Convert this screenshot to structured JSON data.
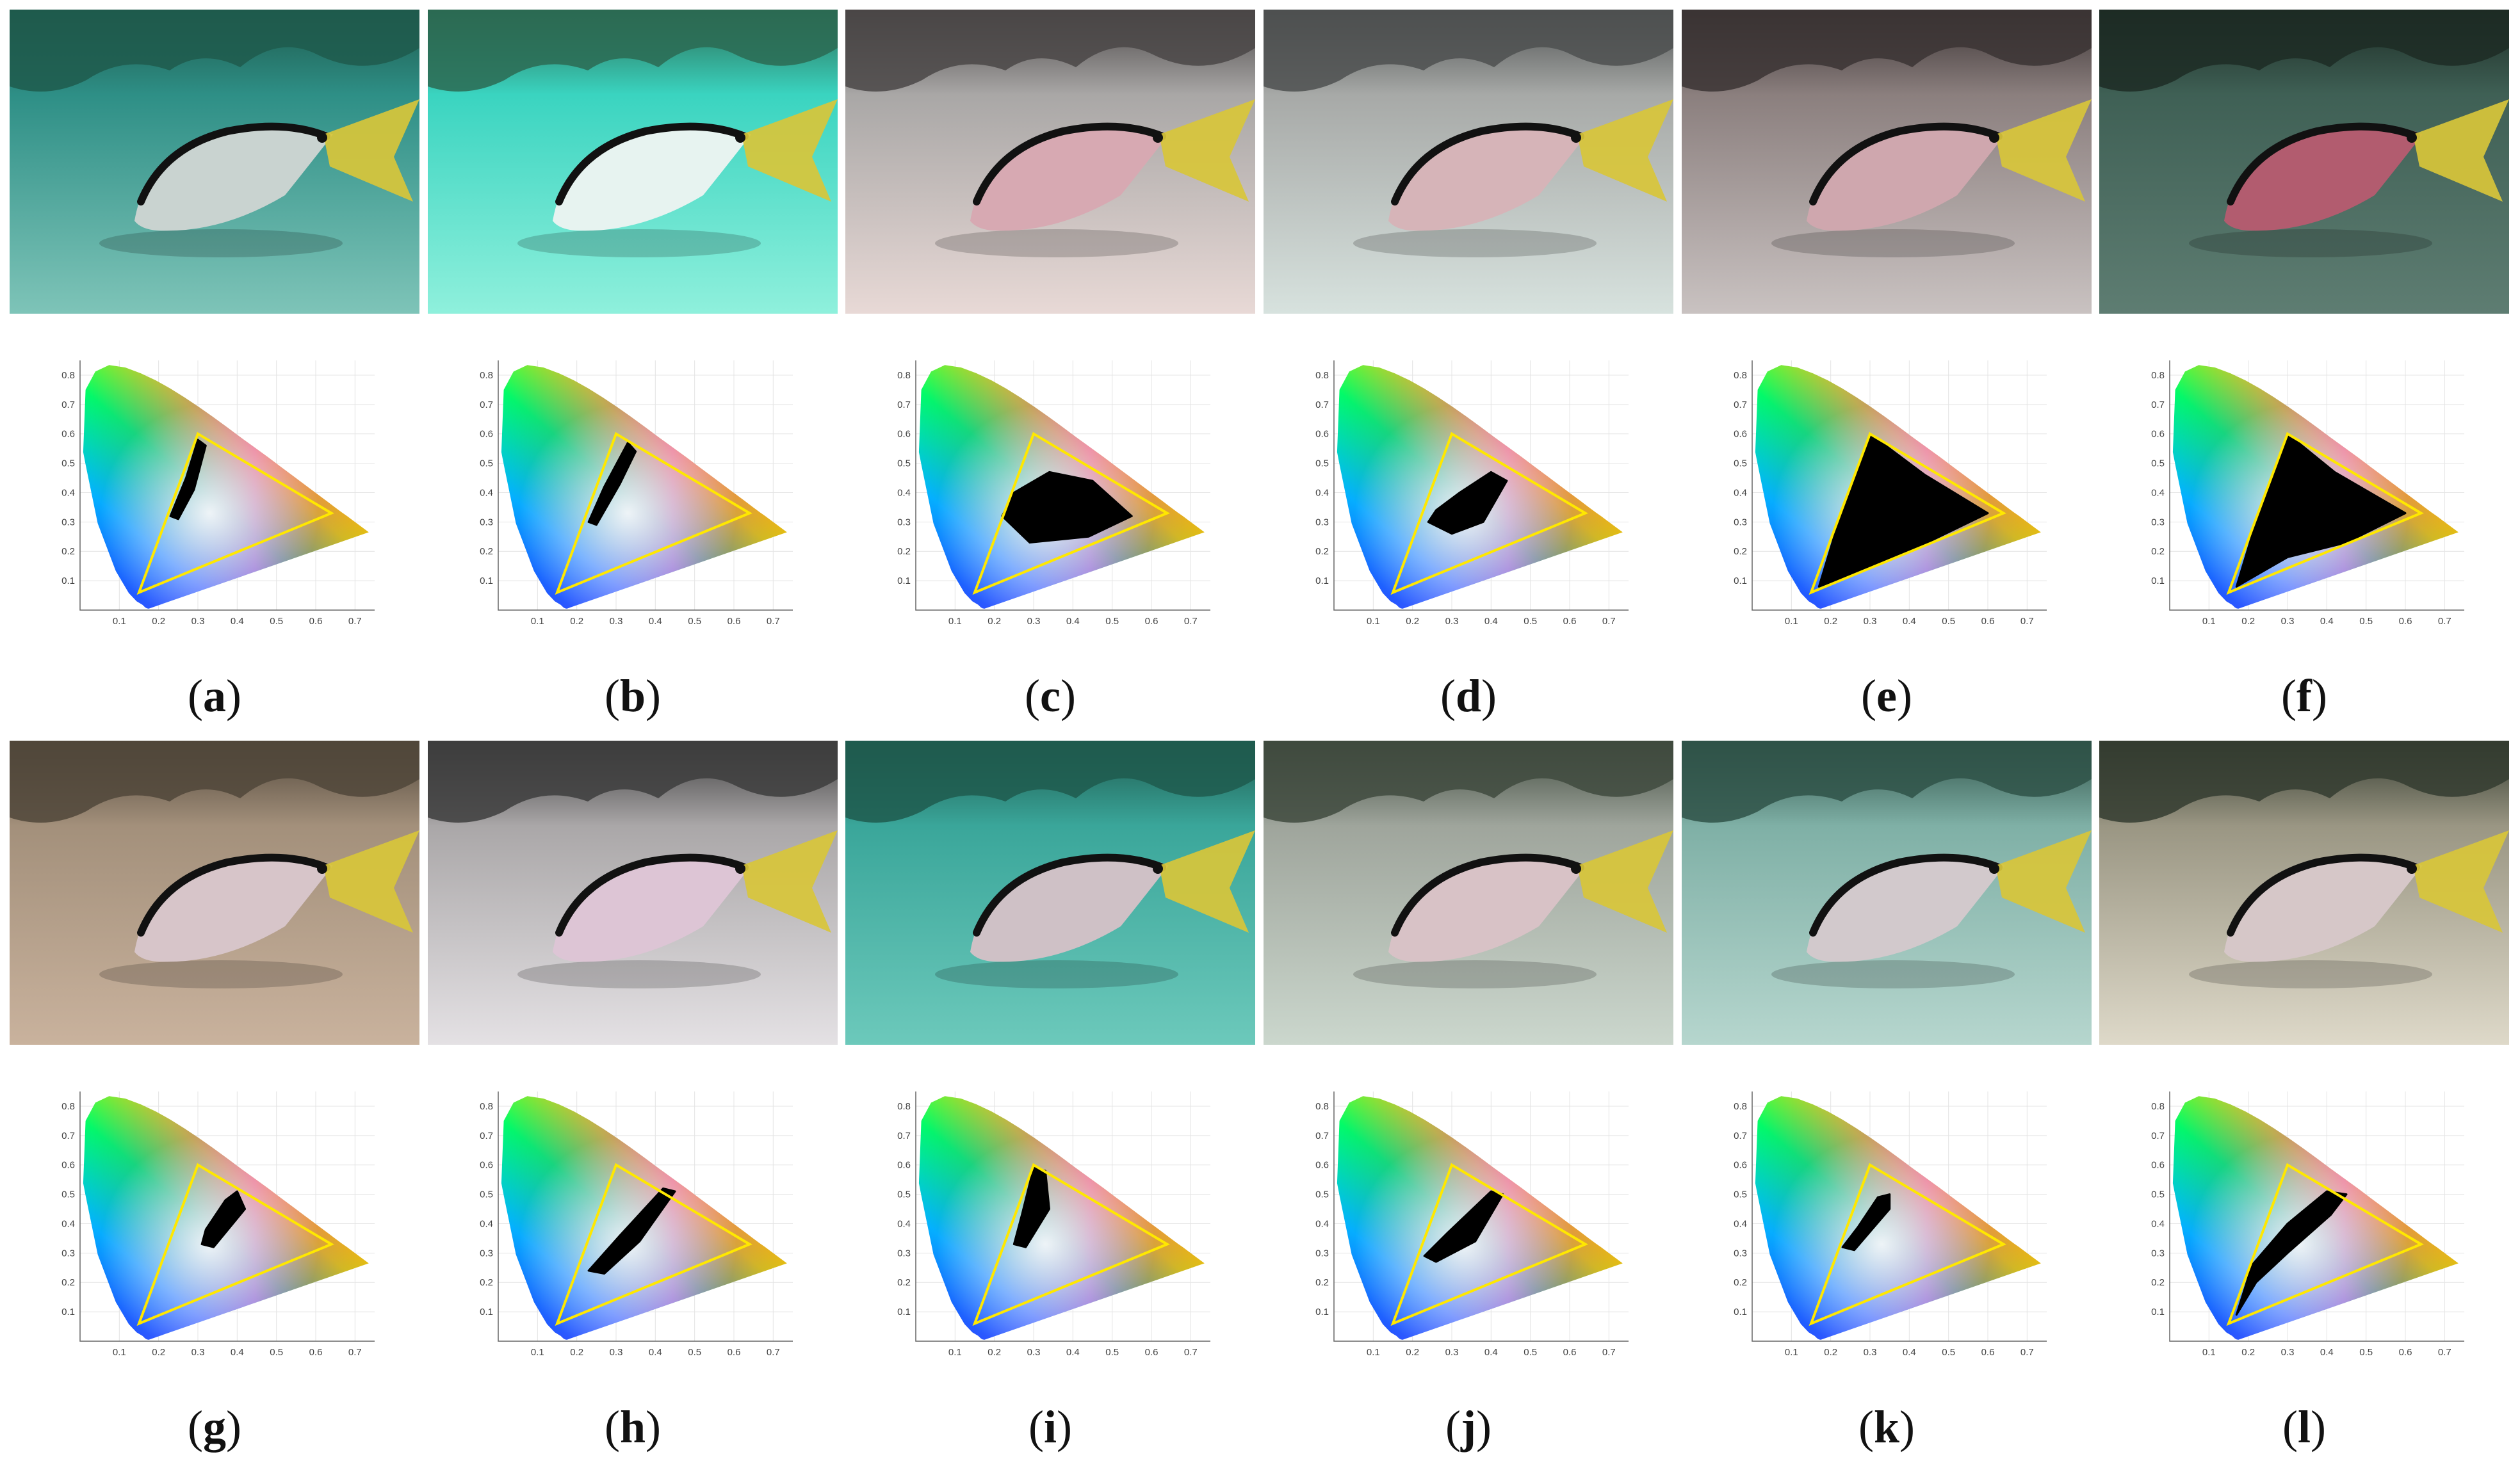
{
  "figure": {
    "panels": [
      {
        "label": "a",
        "tone": "#2e8f86",
        "fish": "#c9d3d0",
        "sand": "#7ec4b8",
        "rock": "#1f5a4c"
      },
      {
        "label": "b",
        "tone": "#3ad4c0",
        "fish": "#e7f3f0",
        "sand": "#8ff0dc",
        "rock": "#2c6a52"
      },
      {
        "label": "c",
        "tone": "#a9a7a6",
        "fish": "#d7a9b2",
        "sand": "#e8d9d6",
        "rock": "#4a4646"
      },
      {
        "label": "d",
        "tone": "#a7a9a7",
        "fish": "#d6b4b8",
        "sand": "#d7e2de",
        "rock": "#4d5050"
      },
      {
        "label": "e",
        "tone": "#8b7f7e",
        "fish": "#cfa7ae",
        "sand": "#c9c2c1",
        "rock": "#3b3434"
      },
      {
        "label": "f",
        "tone": "#3f6055",
        "fish": "#b25c6f",
        "sand": "#5e7d72",
        "rock": "#1d2c25"
      },
      {
        "label": "g",
        "tone": "#a3907b",
        "fish": "#d7c5c9",
        "sand": "#c9b29d",
        "rock": "#50463a"
      },
      {
        "label": "h",
        "tone": "#aaa7a8",
        "fish": "#ddc5d5",
        "sand": "#e4e1e4",
        "rock": "#3d3d3d"
      },
      {
        "label": "i",
        "tone": "#3aa69a",
        "fish": "#cfc1c6",
        "sand": "#6cc9bb",
        "rock": "#1f5a4e"
      },
      {
        "label": "j",
        "tone": "#9fa59c",
        "fish": "#d8c2c6",
        "sand": "#cbd7cd",
        "rock": "#3f4a3e"
      },
      {
        "label": "k",
        "tone": "#7fb0a6",
        "fish": "#d2c9cc",
        "sand": "#b6d6ce",
        "rock": "#2f5248"
      },
      {
        "label": "l",
        "tone": "#9a9683",
        "fish": "#d6c7c8",
        "sand": "#ded9c9",
        "rock": "#343c30"
      }
    ]
  },
  "chart_data": [
    {
      "type": "scatter",
      "panel": "a",
      "xticks": [
        "0.1",
        "0.2",
        "0.3",
        "0.4",
        "0.5",
        "0.6",
        "0.7"
      ],
      "yticks": [
        "0.1",
        "0.2",
        "0.3",
        "0.4",
        "0.5",
        "0.6",
        "0.7",
        "0.8"
      ],
      "xlim": [
        0.0,
        0.75
      ],
      "ylim": [
        0.0,
        0.85
      ],
      "gamut_triangle": [
        [
          0.64,
          0.33
        ],
        [
          0.3,
          0.6
        ],
        [
          0.15,
          0.06
        ]
      ],
      "cluster": [
        [
          0.23,
          0.32
        ],
        [
          0.25,
          0.31
        ],
        [
          0.29,
          0.41
        ],
        [
          0.32,
          0.56
        ],
        [
          0.3,
          0.58
        ],
        [
          0.27,
          0.45
        ]
      ]
    },
    {
      "type": "scatter",
      "panel": "b",
      "xticks": [
        "0.1",
        "0.2",
        "0.3",
        "0.4",
        "0.5",
        "0.6",
        "0.7"
      ],
      "yticks": [
        "0.1",
        "0.2",
        "0.3",
        "0.4",
        "0.5",
        "0.6",
        "0.7",
        "0.8"
      ],
      "xlim": [
        0.0,
        0.75
      ],
      "ylim": [
        0.0,
        0.85
      ],
      "gamut_triangle": [
        [
          0.64,
          0.33
        ],
        [
          0.3,
          0.6
        ],
        [
          0.15,
          0.06
        ]
      ],
      "cluster": [
        [
          0.23,
          0.3
        ],
        [
          0.25,
          0.29
        ],
        [
          0.31,
          0.43
        ],
        [
          0.35,
          0.54
        ],
        [
          0.33,
          0.57
        ],
        [
          0.27,
          0.42
        ]
      ]
    },
    {
      "type": "scatter",
      "panel": "c",
      "xticks": [
        "0.1",
        "0.2",
        "0.3",
        "0.4",
        "0.5",
        "0.6",
        "0.7"
      ],
      "yticks": [
        "0.1",
        "0.2",
        "0.3",
        "0.4",
        "0.5",
        "0.6",
        "0.7",
        "0.8"
      ],
      "xlim": [
        0.0,
        0.75
      ],
      "ylim": [
        0.0,
        0.85
      ],
      "gamut_triangle": [
        [
          0.64,
          0.33
        ],
        [
          0.3,
          0.6
        ],
        [
          0.15,
          0.06
        ]
      ],
      "cluster": [
        [
          0.22,
          0.32
        ],
        [
          0.29,
          0.23
        ],
        [
          0.44,
          0.25
        ],
        [
          0.55,
          0.32
        ],
        [
          0.45,
          0.44
        ],
        [
          0.34,
          0.47
        ],
        [
          0.25,
          0.4
        ]
      ]
    },
    {
      "type": "scatter",
      "panel": "d",
      "xticks": [
        "0.1",
        "0.2",
        "0.3",
        "0.4",
        "0.5",
        "0.6",
        "0.7"
      ],
      "yticks": [
        "0.1",
        "0.2",
        "0.3",
        "0.4",
        "0.5",
        "0.6",
        "0.7",
        "0.8"
      ],
      "xlim": [
        0.0,
        0.75
      ],
      "ylim": [
        0.0,
        0.85
      ],
      "gamut_triangle": [
        [
          0.64,
          0.33
        ],
        [
          0.3,
          0.6
        ],
        [
          0.15,
          0.06
        ]
      ],
      "cluster": [
        [
          0.24,
          0.3
        ],
        [
          0.3,
          0.26
        ],
        [
          0.38,
          0.3
        ],
        [
          0.44,
          0.44
        ],
        [
          0.4,
          0.47
        ],
        [
          0.32,
          0.4
        ],
        [
          0.26,
          0.34
        ]
      ]
    },
    {
      "type": "scatter",
      "panel": "e",
      "xticks": [
        "0.1",
        "0.2",
        "0.3",
        "0.4",
        "0.5",
        "0.6",
        "0.7"
      ],
      "yticks": [
        "0.1",
        "0.2",
        "0.3",
        "0.4",
        "0.5",
        "0.6",
        "0.7",
        "0.8"
      ],
      "xlim": [
        0.0,
        0.75
      ],
      "ylim": [
        0.0,
        0.85
      ],
      "gamut_triangle": [
        [
          0.64,
          0.33
        ],
        [
          0.3,
          0.6
        ],
        [
          0.15,
          0.06
        ]
      ],
      "cluster": [
        [
          0.17,
          0.08
        ],
        [
          0.22,
          0.3
        ],
        [
          0.3,
          0.6
        ],
        [
          0.44,
          0.46
        ],
        [
          0.6,
          0.33
        ],
        [
          0.4,
          0.2
        ],
        [
          0.25,
          0.12
        ]
      ]
    },
    {
      "type": "scatter",
      "panel": "f",
      "xticks": [
        "0.1",
        "0.2",
        "0.3",
        "0.4",
        "0.5",
        "0.6",
        "0.7"
      ],
      "yticks": [
        "0.1",
        "0.2",
        "0.3",
        "0.4",
        "0.5",
        "0.6",
        "0.7",
        "0.8"
      ],
      "xlim": [
        0.0,
        0.75
      ],
      "ylim": [
        0.0,
        0.85
      ],
      "gamut_triangle": [
        [
          0.64,
          0.33
        ],
        [
          0.3,
          0.6
        ],
        [
          0.15,
          0.06
        ]
      ],
      "cluster": [
        [
          0.17,
          0.08
        ],
        [
          0.22,
          0.3
        ],
        [
          0.3,
          0.6
        ],
        [
          0.42,
          0.47
        ],
        [
          0.6,
          0.33
        ],
        [
          0.45,
          0.23
        ],
        [
          0.3,
          0.18
        ]
      ]
    },
    {
      "type": "scatter",
      "panel": "g",
      "xticks": [
        "0.1",
        "0.2",
        "0.3",
        "0.4",
        "0.5",
        "0.6",
        "0.7"
      ],
      "yticks": [
        "0.1",
        "0.2",
        "0.3",
        "0.4",
        "0.5",
        "0.6",
        "0.7",
        "0.8"
      ],
      "xlim": [
        0.0,
        0.75
      ],
      "ylim": [
        0.0,
        0.85
      ],
      "gamut_triangle": [
        [
          0.64,
          0.33
        ],
        [
          0.3,
          0.6
        ],
        [
          0.15,
          0.06
        ]
      ],
      "cluster": [
        [
          0.31,
          0.33
        ],
        [
          0.34,
          0.32
        ],
        [
          0.42,
          0.45
        ],
        [
          0.4,
          0.51
        ],
        [
          0.37,
          0.48
        ],
        [
          0.32,
          0.38
        ]
      ]
    },
    {
      "type": "scatter",
      "panel": "h",
      "xticks": [
        "0.1",
        "0.2",
        "0.3",
        "0.4",
        "0.5",
        "0.6",
        "0.7"
      ],
      "yticks": [
        "0.1",
        "0.2",
        "0.3",
        "0.4",
        "0.5",
        "0.6",
        "0.7",
        "0.8"
      ],
      "xlim": [
        0.0,
        0.75
      ],
      "ylim": [
        0.0,
        0.85
      ],
      "gamut_triangle": [
        [
          0.64,
          0.33
        ],
        [
          0.3,
          0.6
        ],
        [
          0.15,
          0.06
        ]
      ],
      "cluster": [
        [
          0.23,
          0.24
        ],
        [
          0.27,
          0.23
        ],
        [
          0.36,
          0.34
        ],
        [
          0.45,
          0.51
        ],
        [
          0.42,
          0.52
        ],
        [
          0.31,
          0.36
        ]
      ]
    },
    {
      "type": "scatter",
      "panel": "i",
      "xticks": [
        "0.1",
        "0.2",
        "0.3",
        "0.4",
        "0.5",
        "0.6",
        "0.7"
      ],
      "yticks": [
        "0.1",
        "0.2",
        "0.3",
        "0.4",
        "0.5",
        "0.6",
        "0.7",
        "0.8"
      ],
      "xlim": [
        0.0,
        0.75
      ],
      "ylim": [
        0.0,
        0.85
      ],
      "gamut_triangle": [
        [
          0.64,
          0.33
        ],
        [
          0.3,
          0.6
        ],
        [
          0.15,
          0.06
        ]
      ],
      "cluster": [
        [
          0.25,
          0.33
        ],
        [
          0.28,
          0.32
        ],
        [
          0.34,
          0.45
        ],
        [
          0.33,
          0.58
        ],
        [
          0.3,
          0.59
        ],
        [
          0.27,
          0.43
        ]
      ]
    },
    {
      "type": "scatter",
      "panel": "j",
      "xticks": [
        "0.1",
        "0.2",
        "0.3",
        "0.4",
        "0.5",
        "0.6",
        "0.7"
      ],
      "yticks": [
        "0.1",
        "0.2",
        "0.3",
        "0.4",
        "0.5",
        "0.6",
        "0.7",
        "0.8"
      ],
      "xlim": [
        0.0,
        0.75
      ],
      "ylim": [
        0.0,
        0.85
      ],
      "gamut_triangle": [
        [
          0.64,
          0.33
        ],
        [
          0.3,
          0.6
        ],
        [
          0.15,
          0.06
        ]
      ],
      "cluster": [
        [
          0.23,
          0.29
        ],
        [
          0.26,
          0.27
        ],
        [
          0.36,
          0.34
        ],
        [
          0.43,
          0.5
        ],
        [
          0.4,
          0.51
        ],
        [
          0.29,
          0.37
        ]
      ]
    },
    {
      "type": "scatter",
      "panel": "k",
      "xticks": [
        "0.1",
        "0.2",
        "0.3",
        "0.4",
        "0.5",
        "0.6",
        "0.7"
      ],
      "yticks": [
        "0.1",
        "0.2",
        "0.3",
        "0.4",
        "0.5",
        "0.6",
        "0.7",
        "0.8"
      ],
      "xlim": [
        0.0,
        0.75
      ],
      "ylim": [
        0.0,
        0.85
      ],
      "gamut_triangle": [
        [
          0.64,
          0.33
        ],
        [
          0.3,
          0.6
        ],
        [
          0.15,
          0.06
        ]
      ],
      "cluster": [
        [
          0.23,
          0.32
        ],
        [
          0.26,
          0.31
        ],
        [
          0.35,
          0.45
        ],
        [
          0.35,
          0.5
        ],
        [
          0.32,
          0.49
        ],
        [
          0.27,
          0.39
        ]
      ]
    },
    {
      "type": "scatter",
      "panel": "l",
      "xticks": [
        "0.1",
        "0.2",
        "0.3",
        "0.4",
        "0.5",
        "0.6",
        "0.7"
      ],
      "yticks": [
        "0.1",
        "0.2",
        "0.3",
        "0.4",
        "0.5",
        "0.6",
        "0.7",
        "0.8"
      ],
      "xlim": [
        0.0,
        0.75
      ],
      "ylim": [
        0.0,
        0.85
      ],
      "gamut_triangle": [
        [
          0.64,
          0.33
        ],
        [
          0.3,
          0.6
        ],
        [
          0.15,
          0.06
        ]
      ],
      "cluster": [
        [
          0.17,
          0.09
        ],
        [
          0.22,
          0.2
        ],
        [
          0.3,
          0.3
        ],
        [
          0.41,
          0.43
        ],
        [
          0.45,
          0.5
        ],
        [
          0.4,
          0.51
        ],
        [
          0.3,
          0.4
        ],
        [
          0.21,
          0.26
        ]
      ]
    }
  ]
}
